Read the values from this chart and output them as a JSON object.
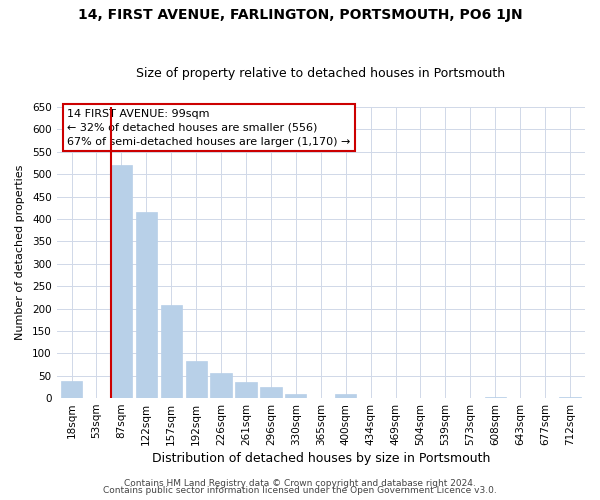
{
  "title": "14, FIRST AVENUE, FARLINGTON, PORTSMOUTH, PO6 1JN",
  "subtitle": "Size of property relative to detached houses in Portsmouth",
  "xlabel": "Distribution of detached houses by size in Portsmouth",
  "ylabel": "Number of detached properties",
  "categories": [
    "18sqm",
    "53sqm",
    "87sqm",
    "122sqm",
    "157sqm",
    "192sqm",
    "226sqm",
    "261sqm",
    "296sqm",
    "330sqm",
    "365sqm",
    "400sqm",
    "434sqm",
    "469sqm",
    "504sqm",
    "539sqm",
    "573sqm",
    "608sqm",
    "643sqm",
    "677sqm",
    "712sqm"
  ],
  "values": [
    38,
    0,
    520,
    415,
    207,
    83,
    57,
    37,
    25,
    10,
    0,
    10,
    0,
    0,
    0,
    0,
    0,
    2,
    0,
    0,
    2
  ],
  "bar_color": "#b8d0e8",
  "bar_edge_color": "#b8d0e8",
  "property_line_bar_index": 2,
  "property_line_color": "#cc0000",
  "annotation_title": "14 FIRST AVENUE: 99sqm",
  "annotation_line1": "← 32% of detached houses are smaller (556)",
  "annotation_line2": "67% of semi-detached houses are larger (1,170) →",
  "annotation_box_color": "#ffffff",
  "annotation_box_edge": "#cc0000",
  "ylim": [
    0,
    650
  ],
  "yticks": [
    0,
    50,
    100,
    150,
    200,
    250,
    300,
    350,
    400,
    450,
    500,
    550,
    600,
    650
  ],
  "footer1": "Contains HM Land Registry data © Crown copyright and database right 2024.",
  "footer2": "Contains public sector information licensed under the Open Government Licence v3.0.",
  "bg_color": "#ffffff",
  "grid_color": "#d0d8e8",
  "title_fontsize": 10,
  "subtitle_fontsize": 9,
  "xlabel_fontsize": 9,
  "ylabel_fontsize": 8,
  "tick_fontsize": 7.5,
  "footer_fontsize": 6.5,
  "annotation_fontsize": 8
}
